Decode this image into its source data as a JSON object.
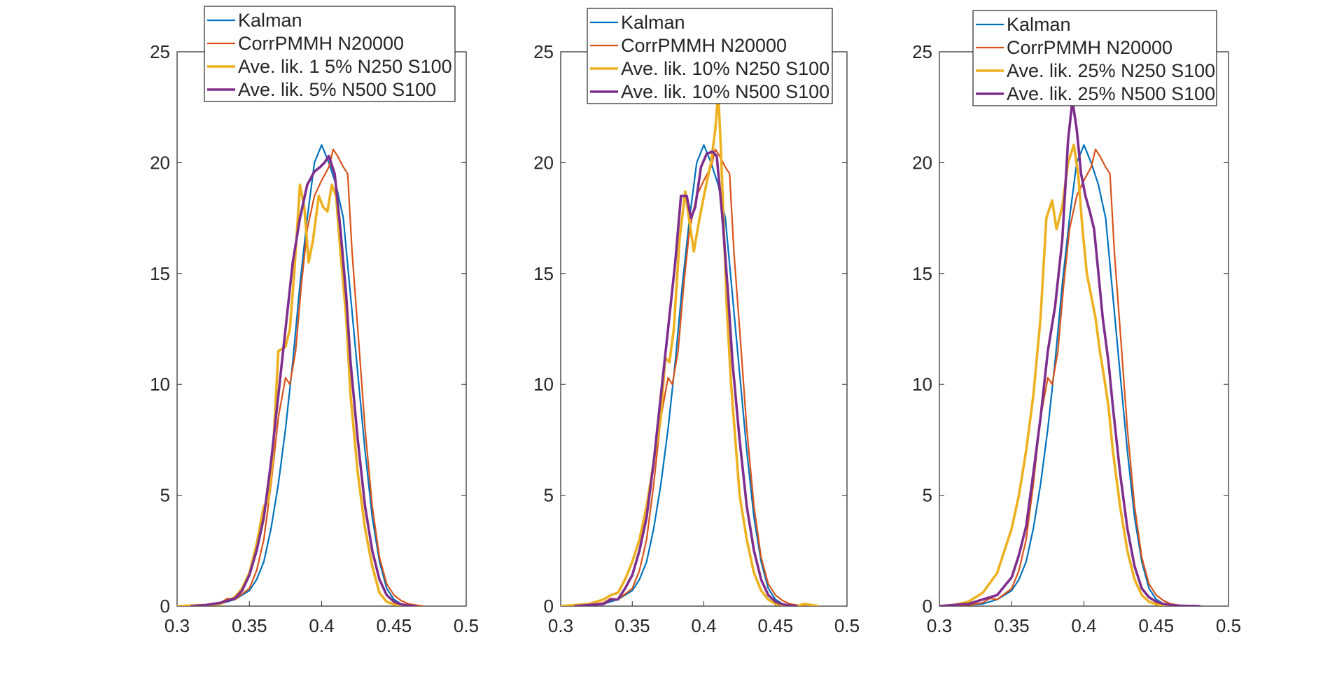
{
  "chart_data": [
    {
      "type": "line",
      "title": "",
      "xlabel": "",
      "ylabel": "",
      "xlim": [
        0.3,
        0.5
      ],
      "ylim": [
        0,
        25
      ],
      "x_ticks": [
        "0.3",
        "0.35",
        "0.4",
        "0.45",
        "0.5"
      ],
      "y_ticks": [
        "0",
        "5",
        "10",
        "15",
        "20",
        "25"
      ],
      "legend_position": "top-center",
      "grid": false,
      "series": [
        {
          "name": "Kalman",
          "color": "#0072BD",
          "x": [
            0.3,
            0.32,
            0.33,
            0.34,
            0.35,
            0.355,
            0.36,
            0.365,
            0.37,
            0.375,
            0.38,
            0.385,
            0.39,
            0.395,
            0.4,
            0.405,
            0.41,
            0.415,
            0.42,
            0.425,
            0.43,
            0.435,
            0.44,
            0.445,
            0.45,
            0.455,
            0.46,
            0.465
          ],
          "y": [
            0,
            0.05,
            0.1,
            0.3,
            0.7,
            1.2,
            2.0,
            3.5,
            5.5,
            8.0,
            11.0,
            14.5,
            17.5,
            20.0,
            20.8,
            20.0,
            19.0,
            17.5,
            14.0,
            10.5,
            7.0,
            4.0,
            2.0,
            0.8,
            0.3,
            0.1,
            0.03,
            0
          ]
        },
        {
          "name": "CorrPMMH N20000",
          "color": "#D95319",
          "x": [
            0.31,
            0.32,
            0.33,
            0.335,
            0.34,
            0.35,
            0.355,
            0.36,
            0.365,
            0.37,
            0.375,
            0.378,
            0.382,
            0.386,
            0.39,
            0.395,
            0.4,
            0.405,
            0.408,
            0.411,
            0.415,
            0.418,
            0.421,
            0.425,
            0.43,
            0.435,
            0.44,
            0.445,
            0.45,
            0.455,
            0.46,
            0.465,
            0.47
          ],
          "y": [
            0,
            0.05,
            0.15,
            0.35,
            0.3,
            0.8,
            1.6,
            3.0,
            5.5,
            8.5,
            10.3,
            10.0,
            11.5,
            14.5,
            17.0,
            18.5,
            19.2,
            19.8,
            20.6,
            20.3,
            19.8,
            19.5,
            16.0,
            12.5,
            8.0,
            4.5,
            2.2,
            1.0,
            0.5,
            0.25,
            0.1,
            0.05,
            0
          ]
        },
        {
          "name": "Ave. lik. 1 5% N250 S100",
          "color": "#EDB120",
          "x": [
            0.3,
            0.32,
            0.33,
            0.34,
            0.345,
            0.35,
            0.355,
            0.36,
            0.363,
            0.366,
            0.37,
            0.375,
            0.378,
            0.381,
            0.385,
            0.388,
            0.391,
            0.394,
            0.398,
            0.401,
            0.404,
            0.407,
            0.41,
            0.413,
            0.417,
            0.42,
            0.425,
            0.43,
            0.435,
            0.44,
            0.445,
            0.45,
            0.455,
            0.46
          ],
          "y": [
            0,
            0.05,
            0.1,
            0.4,
            0.8,
            1.5,
            2.8,
            4.5,
            4.7,
            6.5,
            11.5,
            11.7,
            12.5,
            15.0,
            19.0,
            18.0,
            15.5,
            16.5,
            18.5,
            18.0,
            17.8,
            19.0,
            18.5,
            16.0,
            13.0,
            9.5,
            6.0,
            3.5,
            1.8,
            0.6,
            0.2,
            0.08,
            0.03,
            0
          ]
        },
        {
          "name": "Ave. lik. 5% N500 S100",
          "color": "#7E2F8E",
          "x": [
            0.31,
            0.32,
            0.33,
            0.34,
            0.345,
            0.35,
            0.355,
            0.36,
            0.365,
            0.37,
            0.375,
            0.38,
            0.385,
            0.39,
            0.395,
            0.399,
            0.402,
            0.405,
            0.409,
            0.413,
            0.417,
            0.42,
            0.425,
            0.43,
            0.435,
            0.44,
            0.445,
            0.45,
            0.455,
            0.46,
            0.465
          ],
          "y": [
            0,
            0.05,
            0.15,
            0.35,
            0.7,
            1.4,
            2.5,
            4.0,
            6.5,
            9.5,
            12.5,
            15.5,
            17.5,
            19.0,
            19.6,
            19.8,
            20.0,
            20.3,
            19.5,
            17.0,
            14.0,
            11.0,
            7.5,
            4.5,
            2.5,
            1.2,
            0.5,
            0.2,
            0.08,
            0.03,
            0
          ]
        }
      ]
    },
    {
      "type": "line",
      "title": "",
      "xlabel": "",
      "ylabel": "",
      "xlim": [
        0.3,
        0.5
      ],
      "ylim": [
        0,
        25
      ],
      "x_ticks": [
        "0.3",
        "0.35",
        "0.4",
        "0.45",
        "0.5"
      ],
      "y_ticks": [
        "0",
        "5",
        "10",
        "15",
        "20",
        "25"
      ],
      "legend_position": "top-center",
      "grid": false,
      "series": [
        {
          "name": "Kalman",
          "color": "#0072BD",
          "x": [
            0.3,
            0.32,
            0.33,
            0.34,
            0.35,
            0.355,
            0.36,
            0.365,
            0.37,
            0.375,
            0.38,
            0.385,
            0.39,
            0.395,
            0.4,
            0.405,
            0.41,
            0.415,
            0.42,
            0.425,
            0.43,
            0.435,
            0.44,
            0.445,
            0.45,
            0.455,
            0.46,
            0.465
          ],
          "y": [
            0,
            0.05,
            0.1,
            0.3,
            0.7,
            1.2,
            2.0,
            3.5,
            5.5,
            8.0,
            11.0,
            14.5,
            17.5,
            20.0,
            20.8,
            20.0,
            19.0,
            17.5,
            14.0,
            10.5,
            7.0,
            4.0,
            2.0,
            0.8,
            0.3,
            0.1,
            0.03,
            0
          ]
        },
        {
          "name": "CorrPMMH N20000",
          "color": "#D95319",
          "x": [
            0.31,
            0.32,
            0.33,
            0.335,
            0.34,
            0.35,
            0.355,
            0.36,
            0.365,
            0.37,
            0.375,
            0.378,
            0.382,
            0.386,
            0.39,
            0.395,
            0.4,
            0.405,
            0.408,
            0.411,
            0.415,
            0.418,
            0.421,
            0.425,
            0.43,
            0.435,
            0.44,
            0.445,
            0.45,
            0.455,
            0.46,
            0.465,
            0.47
          ],
          "y": [
            0,
            0.05,
            0.15,
            0.35,
            0.3,
            0.8,
            1.6,
            3.0,
            5.5,
            8.5,
            10.3,
            10.0,
            11.5,
            14.5,
            17.0,
            18.5,
            19.2,
            19.8,
            20.6,
            20.3,
            19.8,
            19.5,
            16.0,
            12.5,
            8.0,
            4.5,
            2.2,
            1.0,
            0.5,
            0.25,
            0.1,
            0.05,
            0
          ]
        },
        {
          "name": "Ave. lik. 10% N250 S100",
          "color": "#EDB120",
          "x": [
            0.3,
            0.32,
            0.33,
            0.335,
            0.34,
            0.345,
            0.35,
            0.355,
            0.36,
            0.365,
            0.37,
            0.373,
            0.376,
            0.379,
            0.383,
            0.387,
            0.39,
            0.393,
            0.397,
            0.401,
            0.405,
            0.408,
            0.41,
            0.412,
            0.414,
            0.416,
            0.419,
            0.422,
            0.425,
            0.43,
            0.435,
            0.44,
            0.445,
            0.45,
            0.455,
            0.46,
            0.465,
            0.47,
            0.475,
            0.48
          ],
          "y": [
            0,
            0.1,
            0.3,
            0.5,
            0.6,
            1.2,
            2.0,
            3.0,
            4.5,
            6.5,
            8.5,
            11.2,
            11.0,
            12.5,
            16.5,
            18.7,
            17.3,
            16.0,
            17.5,
            18.8,
            20.0,
            21.5,
            23.2,
            20.5,
            17.0,
            13.5,
            10.0,
            7.5,
            5.0,
            3.0,
            1.5,
            0.7,
            0.3,
            0.1,
            0.05,
            0,
            0,
            0.1,
            0.05,
            0
          ]
        },
        {
          "name": "Ave. lik. 10% N500 S100",
          "color": "#7E2F8E",
          "x": [
            0.31,
            0.32,
            0.33,
            0.335,
            0.34,
            0.345,
            0.35,
            0.355,
            0.36,
            0.365,
            0.37,
            0.375,
            0.38,
            0.384,
            0.388,
            0.391,
            0.394,
            0.398,
            0.402,
            0.406,
            0.409,
            0.413,
            0.417,
            0.42,
            0.425,
            0.43,
            0.435,
            0.44,
            0.445,
            0.45,
            0.455,
            0.46,
            0.465
          ],
          "y": [
            0,
            0.05,
            0.1,
            0.3,
            0.3,
            0.8,
            1.4,
            2.5,
            4.0,
            6.5,
            9.5,
            12.5,
            15.5,
            18.5,
            18.5,
            17.5,
            18.0,
            19.8,
            20.4,
            20.5,
            20.3,
            17.5,
            14.0,
            11.0,
            7.5,
            4.5,
            2.5,
            1.2,
            0.5,
            0.2,
            0.08,
            0.03,
            0
          ]
        }
      ]
    },
    {
      "type": "line",
      "title": "",
      "xlabel": "",
      "ylabel": "",
      "xlim": [
        0.3,
        0.5
      ],
      "ylim": [
        0,
        25
      ],
      "x_ticks": [
        "0.3",
        "0.35",
        "0.4",
        "0.45",
        "0.5"
      ],
      "y_ticks": [
        "0",
        "5",
        "10",
        "15",
        "20",
        "25"
      ],
      "legend_position": "top-center",
      "grid": false,
      "series": [
        {
          "name": "Kalman",
          "color": "#0072BD",
          "x": [
            0.3,
            0.32,
            0.33,
            0.34,
            0.35,
            0.355,
            0.36,
            0.365,
            0.37,
            0.375,
            0.38,
            0.385,
            0.39,
            0.395,
            0.4,
            0.405,
            0.41,
            0.415,
            0.42,
            0.425,
            0.43,
            0.435,
            0.44,
            0.445,
            0.45,
            0.455,
            0.46,
            0.465
          ],
          "y": [
            0,
            0.05,
            0.1,
            0.3,
            0.7,
            1.2,
            2.0,
            3.5,
            5.5,
            8.0,
            11.0,
            14.5,
            17.5,
            20.0,
            20.8,
            20.0,
            19.0,
            17.5,
            14.0,
            10.5,
            7.0,
            4.0,
            2.0,
            0.8,
            0.3,
            0.1,
            0.03,
            0
          ]
        },
        {
          "name": "CorrPMMH N20000",
          "color": "#D95319",
          "x": [
            0.31,
            0.32,
            0.33,
            0.335,
            0.34,
            0.35,
            0.355,
            0.36,
            0.365,
            0.37,
            0.375,
            0.378,
            0.382,
            0.386,
            0.39,
            0.395,
            0.4,
            0.405,
            0.408,
            0.411,
            0.415,
            0.418,
            0.421,
            0.425,
            0.43,
            0.435,
            0.44,
            0.445,
            0.45,
            0.455,
            0.46,
            0.465,
            0.47
          ],
          "y": [
            0,
            0.05,
            0.15,
            0.35,
            0.3,
            0.8,
            1.6,
            3.0,
            5.5,
            8.5,
            10.3,
            10.0,
            11.5,
            14.5,
            17.0,
            18.5,
            19.2,
            19.8,
            20.6,
            20.3,
            19.8,
            19.5,
            16.0,
            12.5,
            8.0,
            4.5,
            2.2,
            1.0,
            0.5,
            0.25,
            0.1,
            0.05,
            0
          ]
        },
        {
          "name": "Ave. lik. 25% N250 S100",
          "color": "#EDB120",
          "x": [
            0.3,
            0.31,
            0.32,
            0.33,
            0.34,
            0.345,
            0.35,
            0.355,
            0.36,
            0.365,
            0.37,
            0.374,
            0.378,
            0.381,
            0.385,
            0.389,
            0.393,
            0.396,
            0.399,
            0.402,
            0.405,
            0.408,
            0.411,
            0.414,
            0.417,
            0.42,
            0.425,
            0.43,
            0.435,
            0.44,
            0.445,
            0.45,
            0.455,
            0.46
          ],
          "y": [
            0,
            0.05,
            0.2,
            0.6,
            1.5,
            2.5,
            3.5,
            5.0,
            7.0,
            9.5,
            13.0,
            17.5,
            18.3,
            17.0,
            18.0,
            20.0,
            20.8,
            19.5,
            17.0,
            15.0,
            14.0,
            13.0,
            11.5,
            10.3,
            9.0,
            7.0,
            4.5,
            2.5,
            1.2,
            0.5,
            0.2,
            0.08,
            0.03,
            0
          ]
        },
        {
          "name": "Ave. lik. 25% N500 S100",
          "color": "#7E2F8E",
          "x": [
            0.3,
            0.31,
            0.32,
            0.33,
            0.34,
            0.35,
            0.355,
            0.36,
            0.365,
            0.37,
            0.375,
            0.38,
            0.385,
            0.389,
            0.392,
            0.395,
            0.398,
            0.401,
            0.404,
            0.407,
            0.41,
            0.413,
            0.417,
            0.42,
            0.425,
            0.43,
            0.435,
            0.44,
            0.445,
            0.45,
            0.455,
            0.46,
            0.465,
            0.47,
            0.475,
            0.48
          ],
          "y": [
            0,
            0.05,
            0.1,
            0.3,
            0.5,
            1.3,
            2.3,
            3.6,
            6.0,
            8.5,
            11.5,
            13.5,
            16.5,
            21.0,
            22.8,
            21.5,
            19.5,
            18.5,
            17.8,
            17.0,
            15.0,
            13.0,
            11.0,
            9.0,
            6.0,
            3.5,
            1.8,
            0.8,
            0.4,
            0.2,
            0.1,
            0.05,
            0.02,
            0.01,
            0.005,
            0
          ]
        }
      ]
    }
  ]
}
